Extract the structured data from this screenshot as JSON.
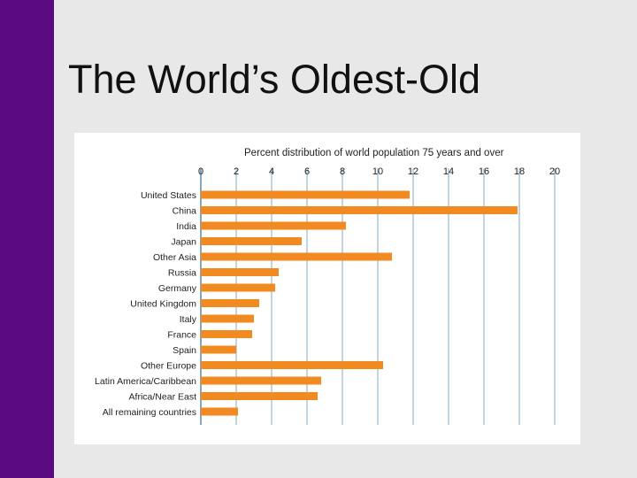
{
  "slide": {
    "title": "The World’s Oldest-Old"
  },
  "colors": {
    "accent_bar": "#5c0a82",
    "bar_fill": "#f18a21",
    "axis_lines": "#2d6f9f",
    "background": "#e8e8e8"
  },
  "chart_data": {
    "type": "bar",
    "orientation": "horizontal",
    "title": "Percent distribution of world population 75 years and over",
    "xlabel": "",
    "ylabel": "",
    "xlim": [
      0,
      20
    ],
    "ticks": [
      "0",
      "2",
      "4",
      "6",
      "8",
      "10",
      "12",
      "14",
      "16",
      "18",
      "20"
    ],
    "grid": true,
    "categories": [
      "United States",
      "China",
      "India",
      "Japan",
      "Other Asia",
      "Russia",
      "Germany",
      "United Kingdom",
      "Italy",
      "France",
      "Spain",
      "Other Europe",
      "Latin America/Caribbean",
      "Africa/Near East",
      "All remaining countries"
    ],
    "values": [
      11.8,
      17.9,
      8.2,
      5.7,
      10.8,
      4.4,
      4.2,
      3.3,
      3.0,
      2.9,
      2.0,
      10.3,
      6.8,
      6.6,
      2.1
    ]
  }
}
